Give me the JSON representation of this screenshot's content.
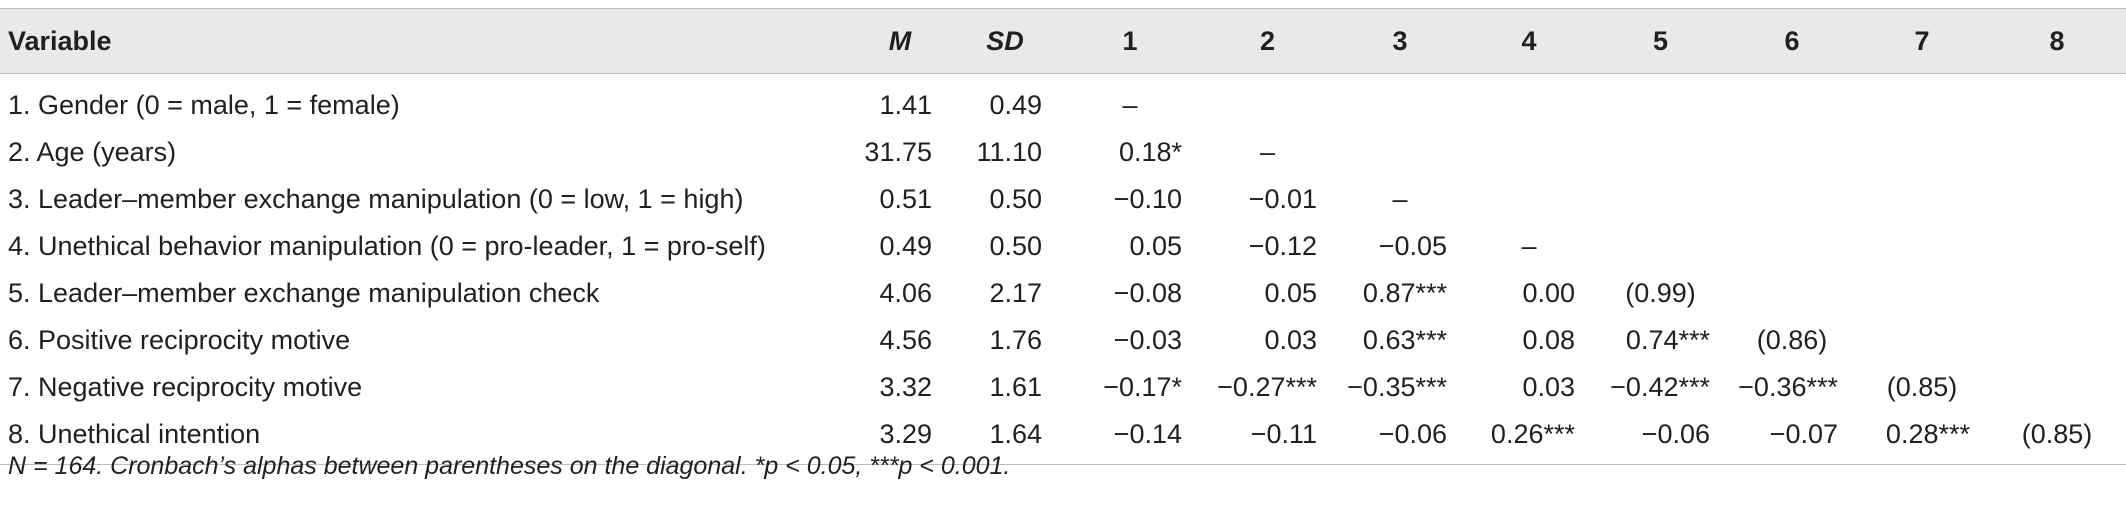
{
  "table": {
    "headers": [
      "Variable",
      "M",
      "SD",
      "1",
      "2",
      "3",
      "4",
      "5",
      "6",
      "7",
      "8"
    ],
    "rows": [
      {
        "variable": "1. Gender (0 = male, 1 = female)",
        "M": "1.41",
        "SD": "0.49",
        "cells": [
          "–",
          "",
          "",
          "",
          "",
          "",
          "",
          ""
        ]
      },
      {
        "variable": "2. Age (years)",
        "M": "31.75",
        "SD": "11.10",
        "cells": [
          "0.18*",
          "–",
          "",
          "",
          "",
          "",
          "",
          ""
        ]
      },
      {
        "variable": "3. Leader–member exchange manipulation (0 = low, 1 = high)",
        "M": "0.51",
        "SD": "0.50",
        "cells": [
          "−0.10",
          "−0.01",
          "–",
          "",
          "",
          "",
          "",
          ""
        ]
      },
      {
        "variable": "4. Unethical behavior manipulation (0 = pro-leader, 1 = pro-self)",
        "M": "0.49",
        "SD": "0.50",
        "cells": [
          "0.05",
          "−0.12",
          "−0.05",
          "–",
          "",
          "",
          "",
          ""
        ]
      },
      {
        "variable": "5. Leader–member exchange manipulation check",
        "M": "4.06",
        "SD": "2.17",
        "cells": [
          "−0.08",
          "0.05",
          "0.87***",
          "0.00",
          "(0.99)",
          "",
          "",
          ""
        ]
      },
      {
        "variable": "6. Positive reciprocity motive",
        "M": "4.56",
        "SD": "1.76",
        "cells": [
          "−0.03",
          "0.03",
          "0.63***",
          "0.08",
          "0.74***",
          "(0.86)",
          "",
          ""
        ]
      },
      {
        "variable": "7. Negative reciprocity motive",
        "M": "3.32",
        "SD": "1.61",
        "cells": [
          "−0.17*",
          "−0.27***",
          "−0.35***",
          "0.03",
          "−0.42***",
          "−0.36***",
          "(0.85)",
          ""
        ]
      },
      {
        "variable": "8. Unethical intention",
        "M": "3.29",
        "SD": "1.64",
        "cells": [
          "−0.14",
          "−0.11",
          "−0.06",
          "0.26***",
          "−0.06",
          "−0.07",
          "0.28***",
          "(0.85)"
        ]
      }
    ]
  },
  "note": "N = 164. Cronbach’s alphas between parentheses on the diagonal. *p < 0.05, ***p < 0.001."
}
